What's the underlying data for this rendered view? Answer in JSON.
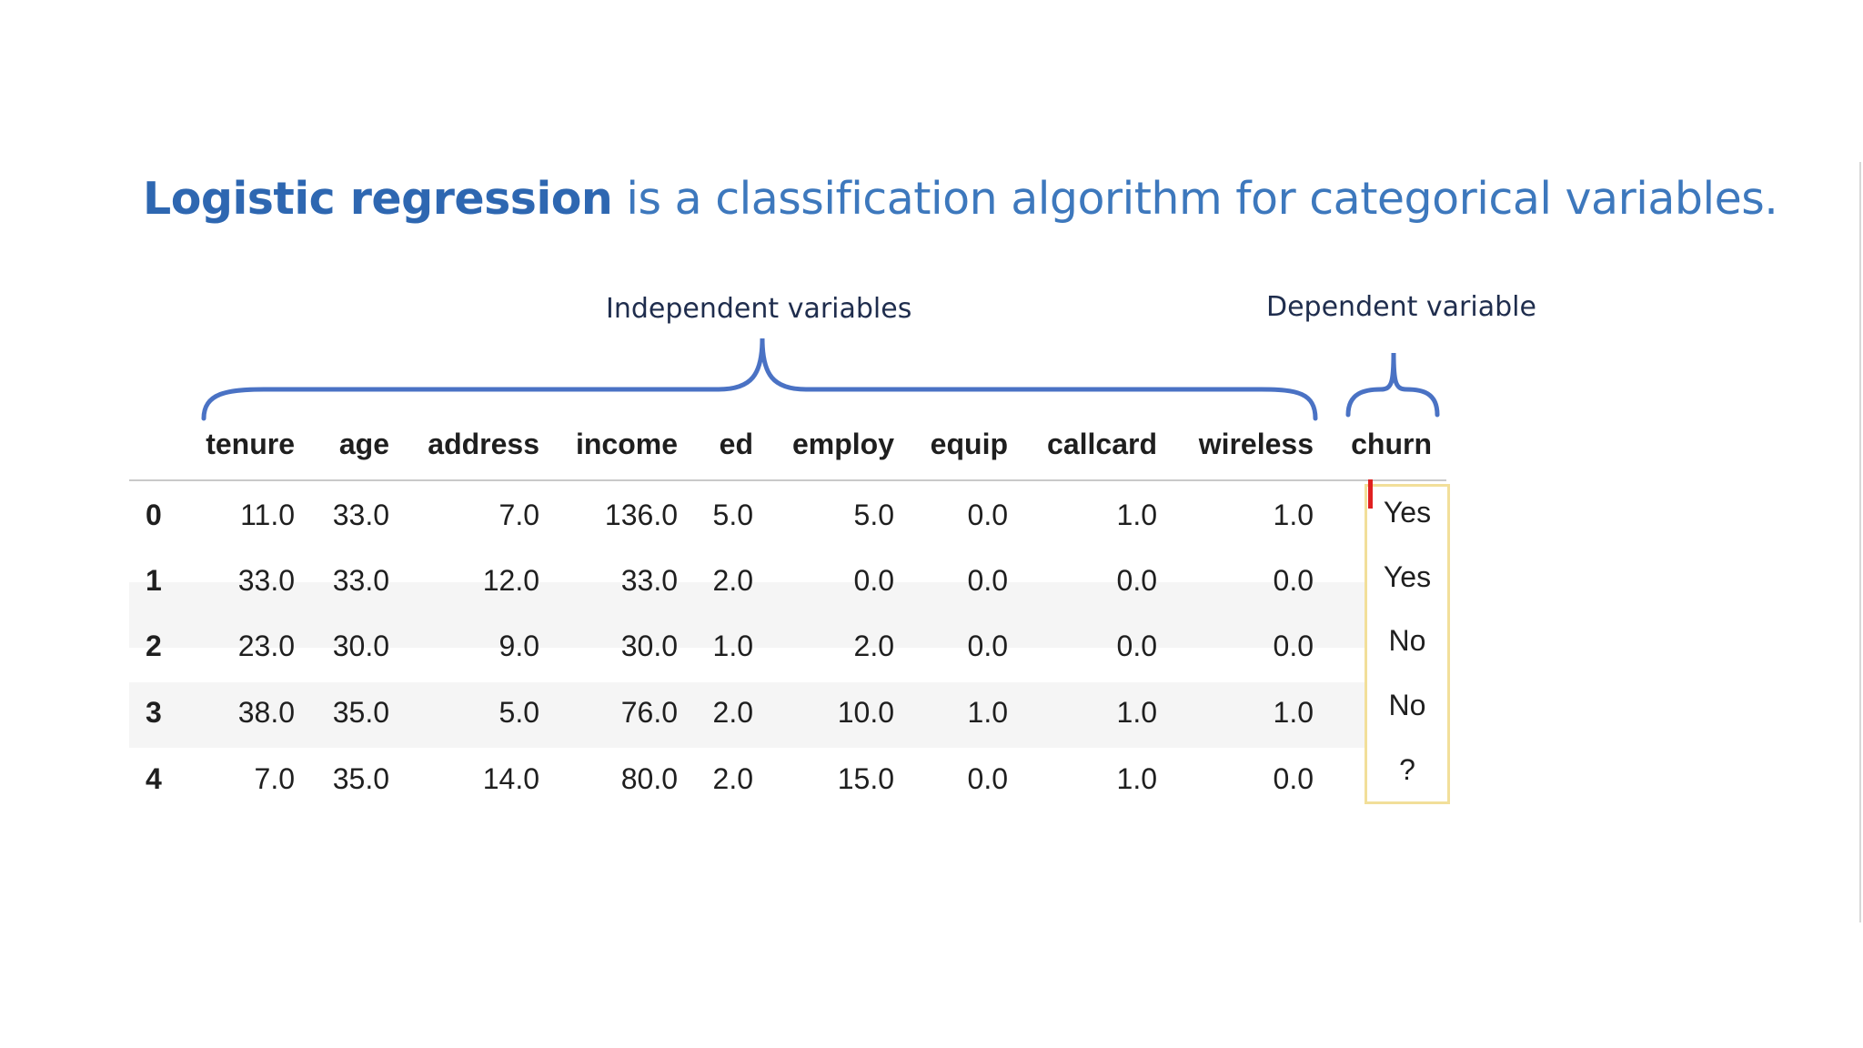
{
  "title": {
    "emphasis": "Logistic regression",
    "rest": " is a classification algorithm for categorical variables."
  },
  "labels": {
    "independent": "Independent variables",
    "dependent": "Dependent variable"
  },
  "table": {
    "columns": [
      "tenure",
      "age",
      "address",
      "income",
      "ed",
      "employ",
      "equip",
      "callcard",
      "wireless",
      "churn"
    ],
    "rows": [
      {
        "index": "0",
        "values": [
          "11.0",
          "33.0",
          "7.0",
          "136.0",
          "5.0",
          "5.0",
          "0.0",
          "1.0",
          "1.0"
        ],
        "churn": "Yes"
      },
      {
        "index": "1",
        "values": [
          "33.0",
          "33.0",
          "12.0",
          "33.0",
          "2.0",
          "0.0",
          "0.0",
          "0.0",
          "0.0"
        ],
        "churn": "Yes"
      },
      {
        "index": "2",
        "values": [
          "23.0",
          "30.0",
          "9.0",
          "30.0",
          "1.0",
          "2.0",
          "0.0",
          "0.0",
          "0.0"
        ],
        "churn": "No"
      },
      {
        "index": "3",
        "values": [
          "38.0",
          "35.0",
          "5.0",
          "76.0",
          "2.0",
          "10.0",
          "1.0",
          "1.0",
          "1.0"
        ],
        "churn": "No"
      },
      {
        "index": "4",
        "values": [
          "7.0",
          "35.0",
          "14.0",
          "80.0",
          "2.0",
          "15.0",
          "0.0",
          "1.0",
          "0.0"
        ],
        "churn": "?"
      }
    ]
  },
  "colors": {
    "title": "#3d78bd",
    "title_emphasis": "#2e67b1",
    "brace": "#4a72c4",
    "highlight_border": "#f2df9a",
    "cursor_mark": "#e02020"
  }
}
